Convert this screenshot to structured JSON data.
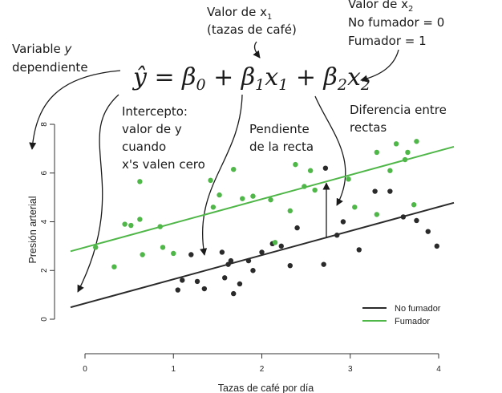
{
  "annotations": {
    "variable_y_1": "Variable ",
    "variable_y_italic": "y",
    "variable_y_2": "dependiente",
    "x1_prefix": "Valor de x",
    "x1_sub": "1",
    "x1_line2": "(tazas de café)",
    "x2_prefix": "Valor de x",
    "x2_sub": "2",
    "x2_line2": "No fumador = 0",
    "x2_line3": "Fumador = 1",
    "intercept_1": "Intercepto:",
    "intercept_2": "valor de y",
    "intercept_3": "cuando",
    "intercept_4": "x's valen cero",
    "slope_1": "Pendiente",
    "slope_2": "de la recta",
    "diff_1": "Diferencia entre",
    "diff_2": "rectas"
  },
  "equation": {
    "yhat": "ŷ",
    "eq": " = ",
    "b": "β",
    "s0": "0",
    "s1": "1",
    "s2": "2",
    "plus": " + ",
    "x": "x"
  },
  "colors": {
    "no_fumador": "#2a2a2a",
    "fumador": "#4fb648",
    "axis": "#333333"
  },
  "chart_data": {
    "type": "scatter",
    "xlabel": "Tazas de café por día",
    "ylabel": "Presión arterial",
    "xlim": [
      0,
      4
    ],
    "ylim": [
      0,
      8
    ],
    "xticks": [
      "0",
      "1",
      "2",
      "3",
      "4"
    ],
    "yticks": [
      "0",
      "2",
      "4",
      "6",
      "8"
    ],
    "legend_position": "bottom-right",
    "grid": false,
    "series": [
      {
        "name": "No fumador",
        "color": "#2a2a2a",
        "line": {
          "intercept": 0.65,
          "slope": 0.99
        },
        "points": [
          [
            1.05,
            1.2
          ],
          [
            1.1,
            1.6
          ],
          [
            1.2,
            2.65
          ],
          [
            1.27,
            1.55
          ],
          [
            1.35,
            1.25
          ],
          [
            1.55,
            2.75
          ],
          [
            1.58,
            1.7
          ],
          [
            1.62,
            2.25
          ],
          [
            1.65,
            2.4
          ],
          [
            1.68,
            1.05
          ],
          [
            1.75,
            1.45
          ],
          [
            1.85,
            2.4
          ],
          [
            1.9,
            2.0
          ],
          [
            2.0,
            2.75
          ],
          [
            2.12,
            3.1
          ],
          [
            2.22,
            3.0
          ],
          [
            2.32,
            2.2
          ],
          [
            2.4,
            3.75
          ],
          [
            2.7,
            2.25
          ],
          [
            2.72,
            6.2
          ],
          [
            2.85,
            3.45
          ],
          [
            2.92,
            4.0
          ],
          [
            3.1,
            2.85
          ],
          [
            3.28,
            5.25
          ],
          [
            3.45,
            5.25
          ],
          [
            3.6,
            4.2
          ],
          [
            3.75,
            4.05
          ],
          [
            3.88,
            3.6
          ],
          [
            3.98,
            3.0
          ]
        ]
      },
      {
        "name": "Fumador",
        "color": "#4fb648",
        "line": {
          "intercept": 2.95,
          "slope": 0.99
        },
        "points": [
          [
            0.12,
            2.95
          ],
          [
            0.33,
            2.15
          ],
          [
            0.45,
            3.9
          ],
          [
            0.52,
            3.85
          ],
          [
            0.62,
            4.1
          ],
          [
            0.62,
            5.65
          ],
          [
            0.65,
            2.65
          ],
          [
            0.85,
            3.8
          ],
          [
            0.88,
            2.95
          ],
          [
            1.0,
            2.7
          ],
          [
            1.42,
            5.7
          ],
          [
            1.45,
            4.6
          ],
          [
            1.52,
            5.1
          ],
          [
            1.68,
            6.15
          ],
          [
            1.78,
            4.95
          ],
          [
            1.9,
            5.05
          ],
          [
            2.1,
            4.9
          ],
          [
            2.15,
            3.15
          ],
          [
            2.32,
            4.45
          ],
          [
            2.38,
            6.35
          ],
          [
            2.48,
            5.45
          ],
          [
            2.55,
            6.1
          ],
          [
            2.6,
            5.3
          ],
          [
            2.98,
            5.75
          ],
          [
            3.05,
            4.6
          ],
          [
            3.3,
            6.85
          ],
          [
            3.3,
            4.3
          ],
          [
            3.45,
            6.1
          ],
          [
            3.52,
            7.2
          ],
          [
            3.62,
            6.55
          ],
          [
            3.65,
            6.85
          ],
          [
            3.72,
            4.7
          ],
          [
            3.75,
            7.3
          ]
        ]
      }
    ]
  }
}
